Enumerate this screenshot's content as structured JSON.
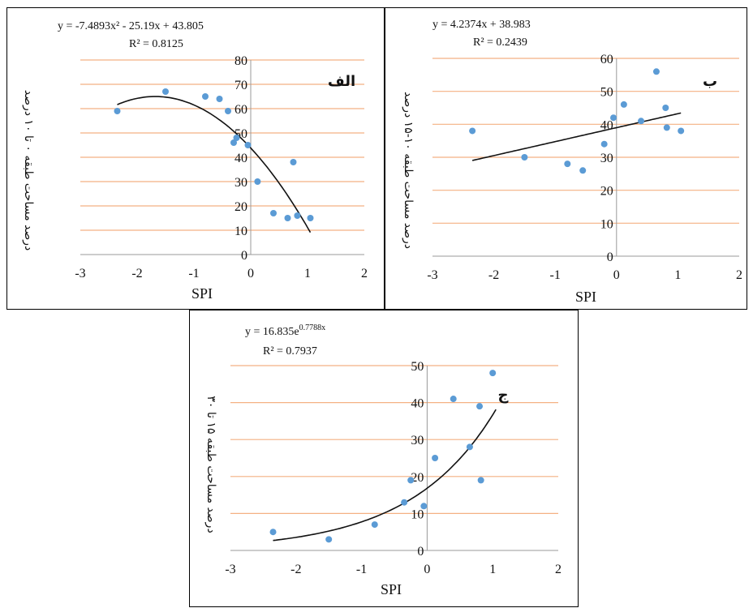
{
  "chart_data": [
    {
      "type": "scatter",
      "panel_label": "الف",
      "equation": "y = -7.4893x² - 25.19x + 43.805",
      "r2": "R² = 0.8125",
      "xlabel": "SPI",
      "ylabel": "درصد مساحت طبقه ۰ تا ۱۰ درصد",
      "xlim": [
        -3,
        2
      ],
      "ylim": [
        0,
        80
      ],
      "x_ticks": [
        "-3",
        "-2",
        "-1",
        "0",
        "1",
        "2"
      ],
      "y_ticks": [
        "0",
        "10",
        "20",
        "30",
        "40",
        "50",
        "60",
        "70",
        "80"
      ],
      "trend": {
        "kind": "poly2",
        "a": -7.4893,
        "b": -25.19,
        "c": 43.805,
        "x_from": -2.35,
        "x_to": 1.05
      },
      "points": {
        "x": [
          -2.35,
          -1.5,
          -0.8,
          -0.55,
          -0.4,
          -0.3,
          -0.25,
          -0.05,
          0.12,
          0.4,
          0.65,
          0.75,
          0.82,
          1.05
        ],
        "y": [
          59,
          67,
          65,
          64,
          59,
          46,
          48,
          45,
          30,
          17,
          15,
          38,
          16,
          15
        ]
      },
      "colors": {
        "points": "#5b9bd5",
        "trend": "#111111",
        "grid": "#f4b183"
      }
    },
    {
      "type": "scatter",
      "panel_label": "ب",
      "equation": "y = 4.2374x + 38.983",
      "r2": "R² = 0.2439",
      "xlabel": "SPI",
      "ylabel": "درصد مساحت طبقه ۱۰-۱۵ درصد",
      "xlim": [
        -3,
        2
      ],
      "ylim": [
        0,
        60
      ],
      "x_ticks": [
        "-3",
        "-2",
        "-1",
        "0",
        "1",
        "2"
      ],
      "y_ticks": [
        "0",
        "10",
        "20",
        "30",
        "40",
        "50",
        "60"
      ],
      "trend": {
        "kind": "linear",
        "m": 4.2374,
        "b": 38.983,
        "x_from": -2.35,
        "x_to": 1.05
      },
      "points": {
        "x": [
          -2.35,
          -1.5,
          -0.8,
          -0.55,
          -0.2,
          -0.05,
          0.12,
          0.4,
          0.65,
          0.8,
          0.82,
          1.05
        ],
        "y": [
          38,
          30,
          28,
          26,
          34,
          42,
          46,
          41,
          56,
          45,
          39,
          38
        ]
      },
      "colors": {
        "points": "#5b9bd5",
        "trend": "#111111",
        "grid": "#f4b183"
      }
    },
    {
      "type": "scatter",
      "panel_label": "ج",
      "equation": "y = 16.835e",
      "equation_exp": "0.7788x",
      "r2": "R² = 0.7937",
      "xlabel": "SPI",
      "ylabel": "درصد مساحت طبقه ۱۵ تا ۳۰",
      "xlim": [
        -3,
        2
      ],
      "ylim": [
        0,
        50
      ],
      "x_ticks": [
        "-3",
        "-2",
        "-1",
        "0",
        "1",
        "2"
      ],
      "y_ticks": [
        "0",
        "10",
        "20",
        "30",
        "40",
        "50"
      ],
      "trend": {
        "kind": "exp",
        "a": 16.835,
        "k": 0.7788,
        "x_from": -2.35,
        "x_to": 1.05
      },
      "points": {
        "x": [
          -2.35,
          -1.5,
          -0.8,
          -0.35,
          -0.25,
          -0.05,
          0.12,
          0.4,
          0.65,
          0.8,
          0.82,
          1.0
        ],
        "y": [
          5,
          3,
          7,
          13,
          19,
          12,
          25,
          41,
          28,
          39,
          19,
          48
        ]
      },
      "colors": {
        "points": "#5b9bd5",
        "trend": "#111111",
        "grid": "#f4b183"
      }
    }
  ]
}
